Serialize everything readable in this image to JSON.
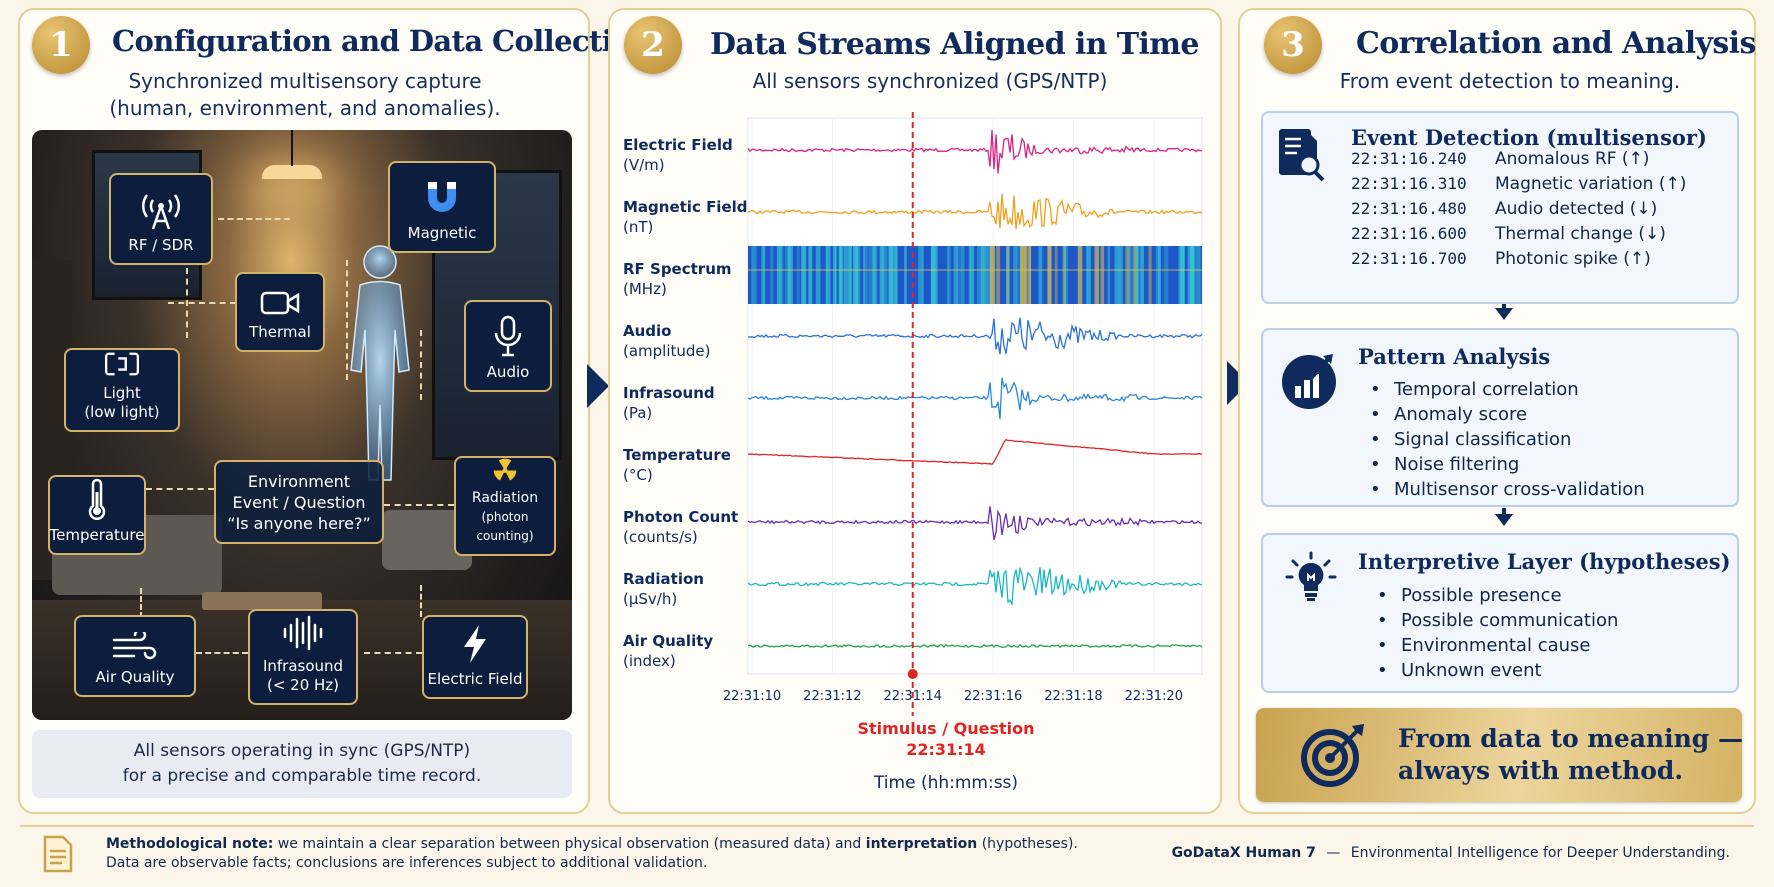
{
  "panel1": {
    "number": "1",
    "title": "Configuration and Data Collection",
    "subtitle_line1": "Synchronized multisensory capture",
    "subtitle_line2": "(human, environment, and anomalies).",
    "sensors": {
      "rf": "RF / SDR",
      "magnetic": "Magnetic",
      "thermal": "Thermal",
      "audio": "Audio",
      "light_l1": "Light",
      "light_l2": "(low light)",
      "temperature": "Temperature",
      "radiation_l1": "Radiation",
      "radiation_l2": "(photon counting)",
      "air_quality": "Air Quality",
      "infrasound_l1": "Infrasound",
      "infrasound_l2": "(< 20 Hz)",
      "electric_field": "Electric Field"
    },
    "event_l1": "Environment",
    "event_l2": "Event / Question",
    "event_l3": "“Is anyone here?”",
    "sync_l1": "All sensors operating in sync (GPS/NTP)",
    "sync_l2": "for a precise and comparable time record."
  },
  "panel2": {
    "number": "2",
    "title": "Data Streams Aligned in Time",
    "subtitle": "All sensors synchronized (GPS/NTP)",
    "stimulus_label": "Stimulus / Question",
    "stimulus_time": "22:31:14",
    "xlabel": "Time (hh:mm:ss)"
  },
  "chart_data": {
    "type": "line",
    "x_ticks": [
      "22:31:10",
      "22:31:12",
      "22:31:14",
      "22:31:16",
      "22:31:18",
      "22:31:20"
    ],
    "xlim": [
      "22:31:09.9",
      "22:31:21.2"
    ],
    "marker_time": "22:31:14",
    "xlabel": "Time (hh:mm:ss)",
    "series": [
      {
        "name": "Electric Field",
        "unit": "(V/m)",
        "color": "#e0207f",
        "burst_start": "22:31:16",
        "burst_peak": "22:31:16.1",
        "style": "spike"
      },
      {
        "name": "Magnetic Field",
        "unit": "(nT)",
        "color": "#f0a21c",
        "burst_start": "22:31:16",
        "burst_peak": "22:31:16.4",
        "style": "burst"
      },
      {
        "name": "RF Spectrum",
        "unit": "(MHz)",
        "color": "#1d57c9",
        "style": "spectrogram"
      },
      {
        "name": "Audio",
        "unit": "(amplitude)",
        "color": "#2a72d9",
        "burst_start": "22:31:16",
        "burst_peak": "22:31:16.5",
        "style": "burst"
      },
      {
        "name": "Infrasound",
        "unit": "(Pa)",
        "color": "#2a86d9",
        "burst_start": "22:31:16",
        "burst_peak": "22:31:16.1",
        "style": "spike"
      },
      {
        "name": "Temperature",
        "unit": "(°C)",
        "color": "#e02424",
        "burst_start": "22:31:16",
        "burst_peak": "22:31:16.3",
        "style": "step"
      },
      {
        "name": "Photon Count",
        "unit": "(counts/s)",
        "color": "#6a2cb0",
        "burst_start": "22:31:16",
        "burst_peak": "22:31:16",
        "style": "spike"
      },
      {
        "name": "Radiation",
        "unit": "(µSv/h)",
        "color": "#1bb6c4",
        "burst_start": "22:31:16",
        "burst_peak": "22:31:16.6",
        "style": "burst"
      },
      {
        "name": "Air Quality",
        "unit": "(index)",
        "color": "#22a43a",
        "style": "flat"
      }
    ]
  },
  "panel3": {
    "number": "3",
    "title": "Correlation and Analysis",
    "subtitle": "From event detection to meaning.",
    "event_detection": {
      "title": "Event Detection (multisensor)",
      "rows": [
        {
          "time": "22:31:16.240",
          "event": "Anomalous RF (↑)"
        },
        {
          "time": "22:31:16.310",
          "event": "Magnetic variation (↑)"
        },
        {
          "time": "22:31:16.480",
          "event": "Audio detected (↓)"
        },
        {
          "time": "22:31:16.600",
          "event": "Thermal change (↓)"
        },
        {
          "time": "22:31:16.700",
          "event": "Photonic spike (↑)"
        }
      ]
    },
    "pattern": {
      "title": "Pattern Analysis",
      "items": [
        "Temporal correlation",
        "Anomaly score",
        "Signal classification",
        "Noise filtering",
        "Multisensor cross-validation"
      ]
    },
    "interpretive": {
      "title": "Interpretive Layer (hypotheses)",
      "items": [
        "Possible presence",
        "Possible communication",
        "Environmental cause",
        "Unknown event"
      ]
    },
    "motto_l1": "From data to meaning —",
    "motto_l2": "always with method."
  },
  "footer": {
    "note_label": "Methodological note:",
    "note_a": " we maintain a clear separation between physical observation (measured data) and ",
    "note_b": "interpretation",
    "note_c": " (hypotheses).",
    "note_line2": "Data are observable facts; conclusions are inferences subject to additional validation.",
    "brand": "GoDataX Human 7",
    "dash": "—",
    "tagline": "Environmental Intelligence for Deeper Understanding."
  },
  "colors": {
    "navy": "#0f2a5c",
    "gold": "#c9a24e",
    "stimulus": "#e02424"
  }
}
